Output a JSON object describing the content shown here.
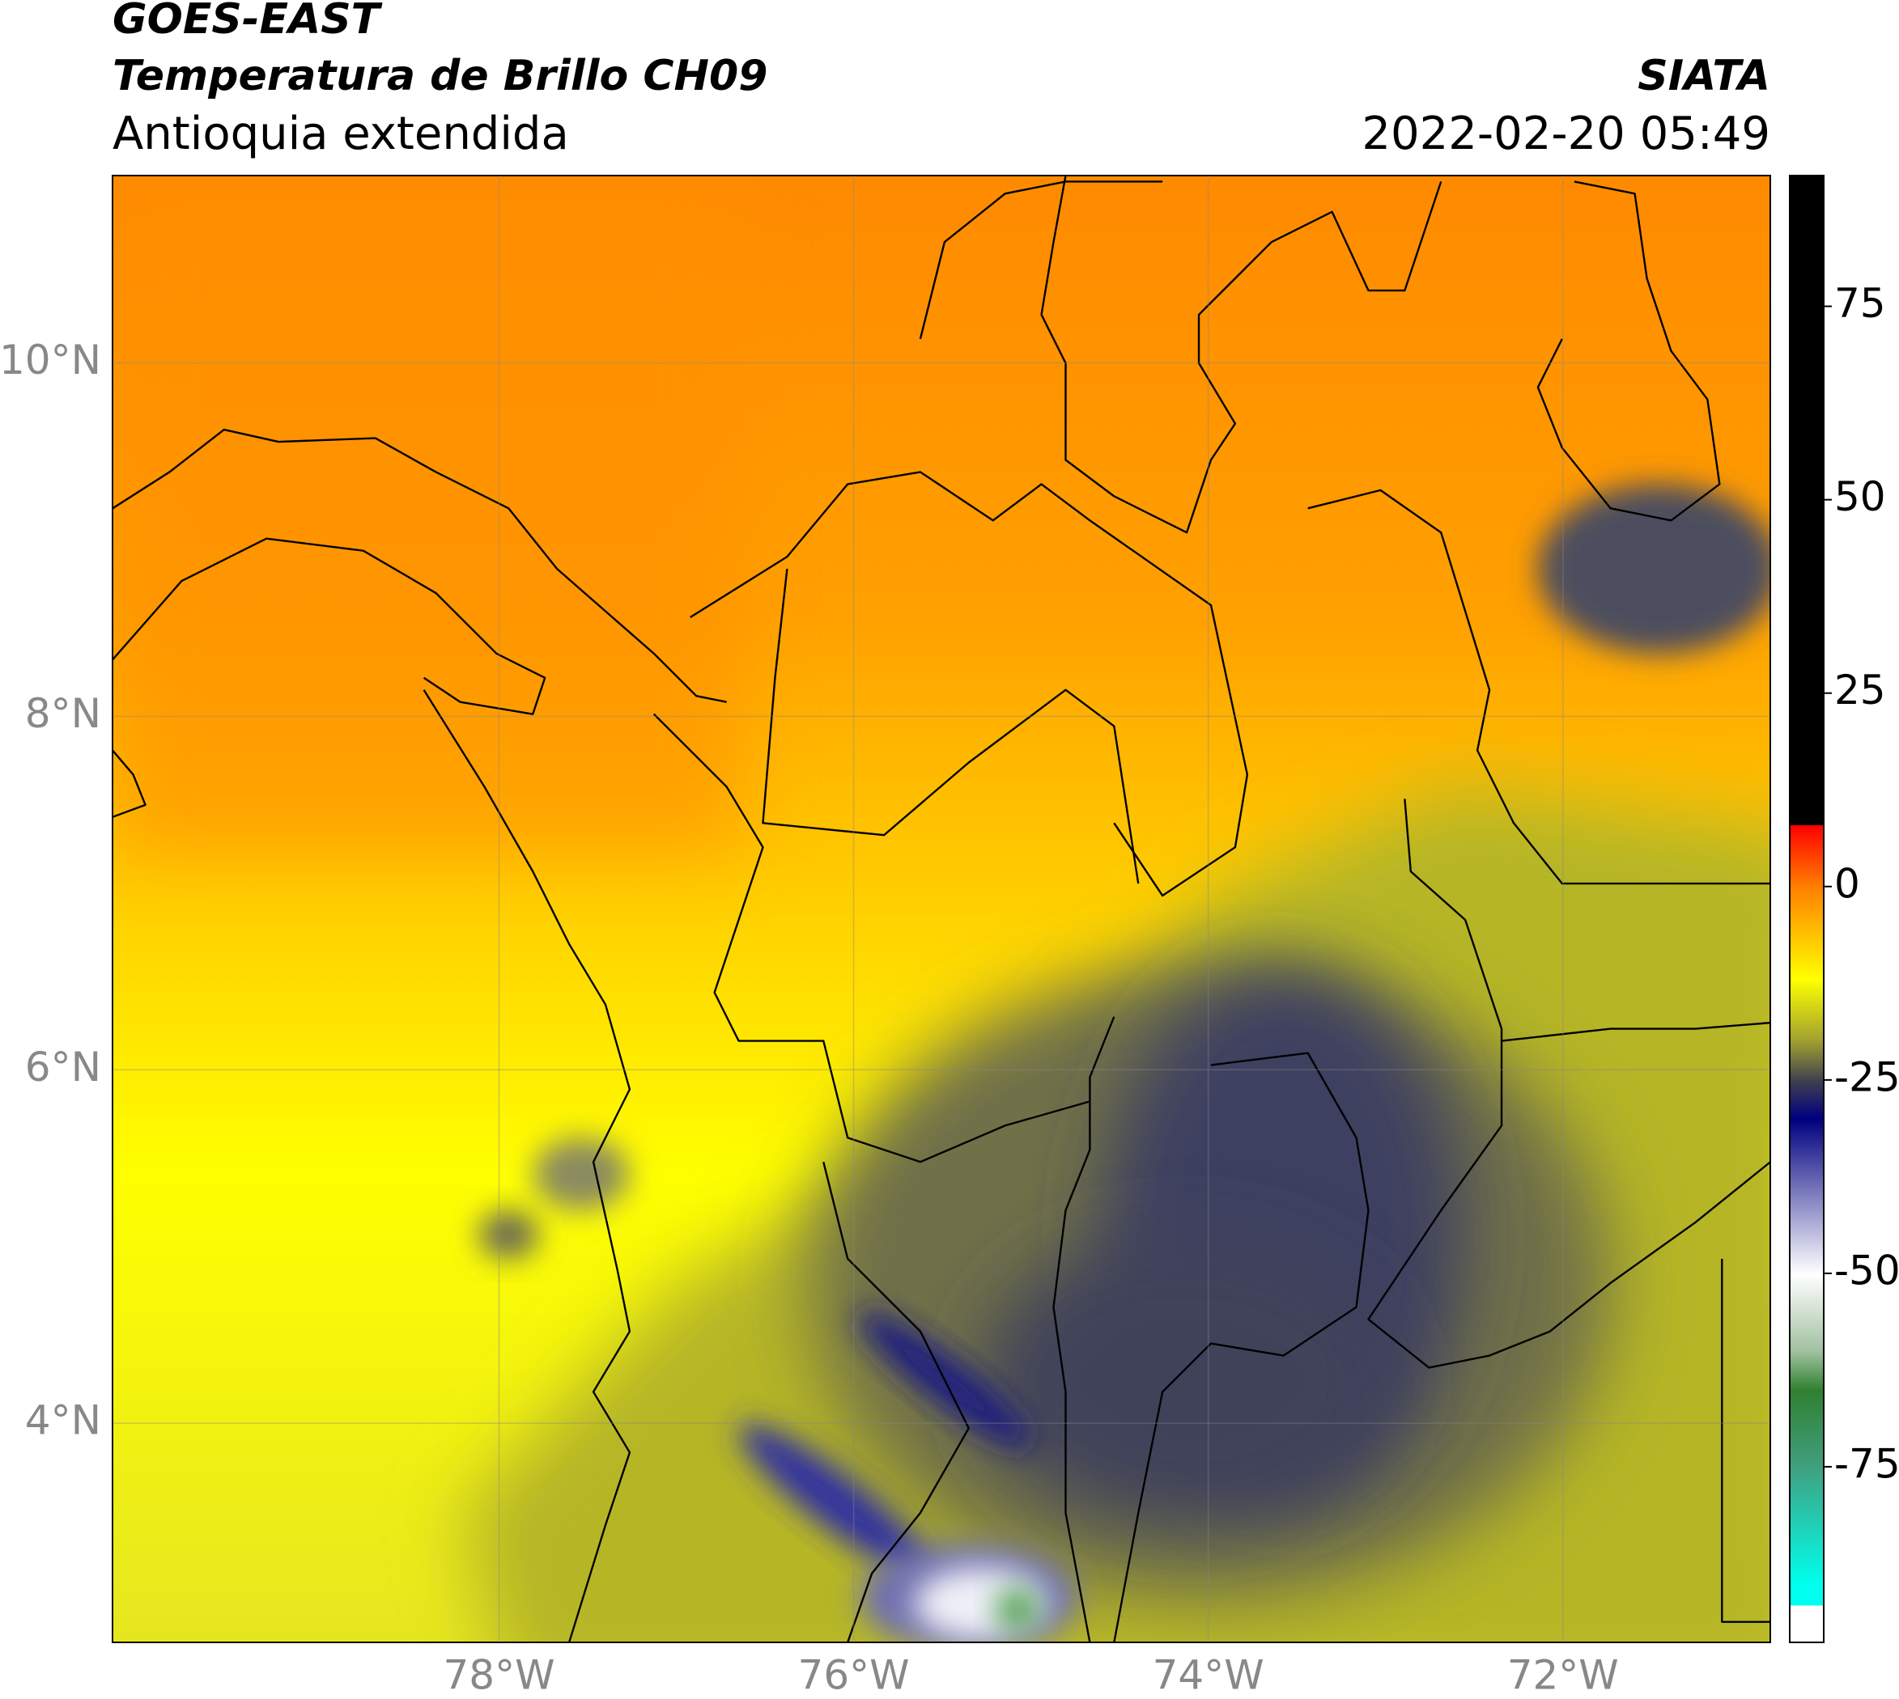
{
  "chart_data": {
    "type": "map",
    "title": "GOES-EAST",
    "subtitle": "Temperatura de Brillo CH09",
    "region": "Antioquia extendida",
    "source": "SIATA",
    "timestamp": "2022-02-20 05:49",
    "xlim": [
      -80.18,
      -70.83
    ],
    "ylim": [
      2.76,
      11.06
    ],
    "xticks": [
      {
        "value": -78,
        "label": "78°W"
      },
      {
        "value": -76,
        "label": "76°W"
      },
      {
        "value": -74,
        "label": "74°W"
      },
      {
        "value": -72,
        "label": "72°W"
      }
    ],
    "yticks": [
      {
        "value": 10,
        "label": "10°N"
      },
      {
        "value": 8,
        "label": "8°N"
      },
      {
        "value": 6,
        "label": "6°N"
      },
      {
        "value": 4,
        "label": "4°N"
      }
    ],
    "grid": true,
    "clim": [
      -97.7,
      91.9
    ],
    "cticks": [
      75,
      50,
      25,
      0,
      -25,
      -50,
      -75
    ]
  }
}
